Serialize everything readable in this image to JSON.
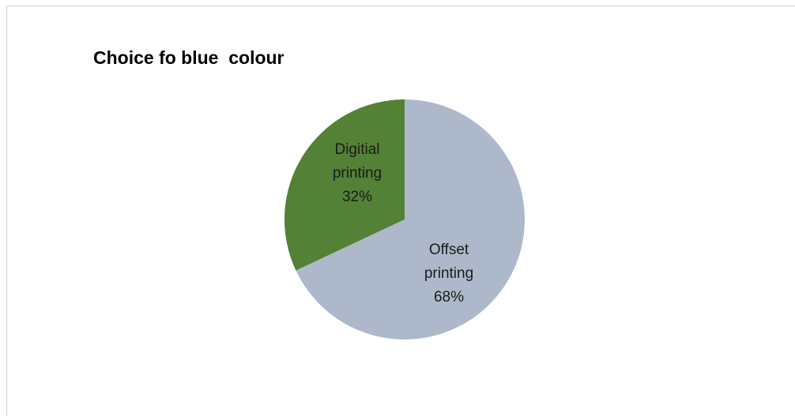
{
  "chart_data": {
    "type": "pie",
    "title": "Choice fo blue  colour",
    "slices": [
      {
        "label_lines": [
          "Offset",
          "printing"
        ],
        "percent_label": "68%",
        "value": 68,
        "color": "#adb9ca"
      },
      {
        "label_lines": [
          "Digitial",
          "printing"
        ],
        "percent_label": "32%",
        "value": 32,
        "color": "#538135"
      }
    ],
    "start_angle_deg": 0,
    "direction": "clockwise",
    "legend": "none"
  }
}
